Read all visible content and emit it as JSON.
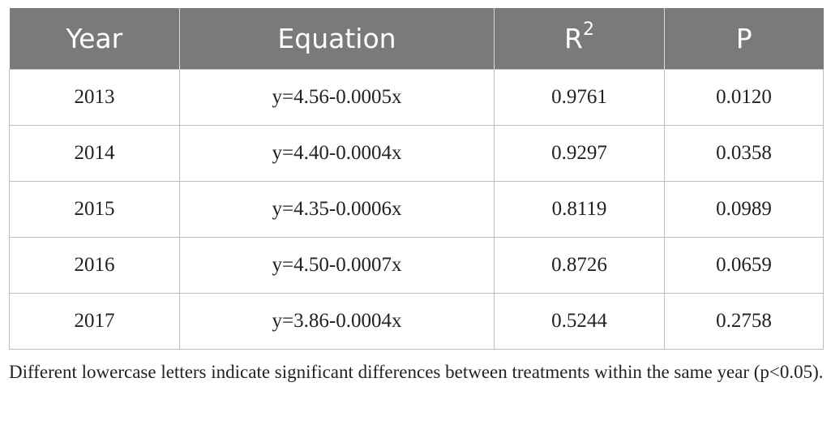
{
  "table": {
    "headers": {
      "year": "Year",
      "equation": "Equation",
      "r2_base": "R",
      "r2_sup": "2",
      "p": "P"
    },
    "rows": [
      {
        "year": "2013",
        "equation": "y=4.56-0.0005x",
        "r2": "0.9761",
        "p": "0.0120"
      },
      {
        "year": "2014",
        "equation": "y=4.40-0.0004x",
        "r2": "0.9297",
        "p": "0.0358"
      },
      {
        "year": "2015",
        "equation": "y=4.35-0.0006x",
        "r2": "0.8119",
        "p": "0.0989"
      },
      {
        "year": "2016",
        "equation": "y=4.50-0.0007x",
        "r2": "0.8726",
        "p": "0.0659"
      },
      {
        "year": "2017",
        "equation": "y=3.86-0.0004x",
        "r2": "0.5244",
        "p": "0.2758"
      }
    ]
  },
  "footnote": "Different lowercase letters indicate significant differences between treatments within the same year (p<0.05).",
  "colors": {
    "header_bg": "#7a7a7a",
    "header_text": "#ffffff",
    "grid": "#bdbdbd"
  }
}
